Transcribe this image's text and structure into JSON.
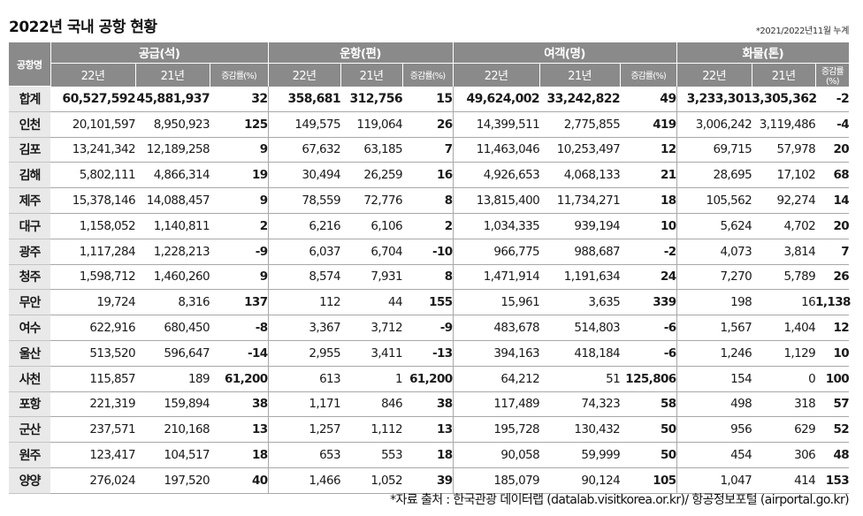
{
  "title": "2022년 국내 공항 현황",
  "note": "*2021/2022년11월 누계",
  "source": "*자료 출처 : 한국관광 데이터랩 (datalab.visitkorea.or.kr)/ 항공정보포털 (airportal.go.kr)",
  "header": {
    "corner": "공항명",
    "groups": [
      "공급(석)",
      "운항(편)",
      "여객(명)",
      "화물(톤)"
    ],
    "sub": {
      "y22": "22년",
      "y21": "21년",
      "rate": "증감률(%)"
    }
  },
  "rows": [
    {
      "name": "합계",
      "cols": [
        "60,527,592",
        "45,881,937",
        "32",
        "358,681",
        "312,756",
        "15",
        "49,624,002",
        "33,242,822",
        "49",
        "3,233,301",
        "3,305,362",
        "-2"
      ]
    },
    {
      "name": "인천",
      "cols": [
        "20,101,597",
        "8,950,923",
        "125",
        "149,575",
        "119,064",
        "26",
        "14,399,511",
        "2,775,855",
        "419",
        "3,006,242",
        "3,119,486",
        "-4"
      ]
    },
    {
      "name": "김포",
      "cols": [
        "13,241,342",
        "12,189,258",
        "9",
        "67,632",
        "63,185",
        "7",
        "11,463,046",
        "10,253,497",
        "12",
        "69,715",
        "57,978",
        "20"
      ]
    },
    {
      "name": "김해",
      "cols": [
        "5,802,111",
        "4,866,314",
        "19",
        "30,494",
        "26,259",
        "16",
        "4,926,653",
        "4,068,133",
        "21",
        "28,695",
        "17,102",
        "68"
      ]
    },
    {
      "name": "제주",
      "cols": [
        "15,378,146",
        "14,088,457",
        "9",
        "78,559",
        "72,776",
        "8",
        "13,815,400",
        "11,734,271",
        "18",
        "105,562",
        "92,274",
        "14"
      ]
    },
    {
      "name": "대구",
      "cols": [
        "1,158,052",
        "1,140,811",
        "2",
        "6,216",
        "6,106",
        "2",
        "1,034,335",
        "939,194",
        "10",
        "5,624",
        "4,702",
        "20"
      ]
    },
    {
      "name": "광주",
      "cols": [
        "1,117,284",
        "1,228,213",
        "-9",
        "6,037",
        "6,704",
        "-10",
        "966,775",
        "988,687",
        "-2",
        "4,073",
        "3,814",
        "7"
      ]
    },
    {
      "name": "청주",
      "cols": [
        "1,598,712",
        "1,460,260",
        "9",
        "8,574",
        "7,931",
        "8",
        "1,471,914",
        "1,191,634",
        "24",
        "7,270",
        "5,789",
        "26"
      ]
    },
    {
      "name": "무안",
      "cols": [
        "19,724",
        "8,316",
        "137",
        "112",
        "44",
        "155",
        "15,961",
        "3,635",
        "339",
        "198",
        "16",
        "1,138"
      ]
    },
    {
      "name": "여수",
      "cols": [
        "622,916",
        "680,450",
        "-8",
        "3,367",
        "3,712",
        "-9",
        "483,678",
        "514,803",
        "-6",
        "1,567",
        "1,404",
        "12"
      ]
    },
    {
      "name": "울산",
      "cols": [
        "513,520",
        "596,647",
        "-14",
        "2,955",
        "3,411",
        "-13",
        "394,163",
        "418,184",
        "-6",
        "1,246",
        "1,129",
        "10"
      ]
    },
    {
      "name": "사천",
      "cols": [
        "115,857",
        "189",
        "61,200",
        "613",
        "1",
        "61,200",
        "64,212",
        "51",
        "125,806",
        "154",
        "0",
        "100"
      ]
    },
    {
      "name": "포항",
      "cols": [
        "221,319",
        "159,894",
        "38",
        "1,171",
        "846",
        "38",
        "117,489",
        "74,323",
        "58",
        "498",
        "318",
        "57"
      ]
    },
    {
      "name": "군산",
      "cols": [
        "237,571",
        "210,168",
        "13",
        "1,257",
        "1,112",
        "13",
        "195,728",
        "130,432",
        "50",
        "956",
        "629",
        "52"
      ]
    },
    {
      "name": "원주",
      "cols": [
        "123,417",
        "104,517",
        "18",
        "653",
        "553",
        "18",
        "90,058",
        "59,999",
        "50",
        "454",
        "306",
        "48"
      ]
    },
    {
      "name": "양양",
      "cols": [
        "276,024",
        "197,520",
        "40",
        "1,466",
        "1,052",
        "39",
        "185,079",
        "90,124",
        "105",
        "1,047",
        "414",
        "153"
      ]
    }
  ]
}
